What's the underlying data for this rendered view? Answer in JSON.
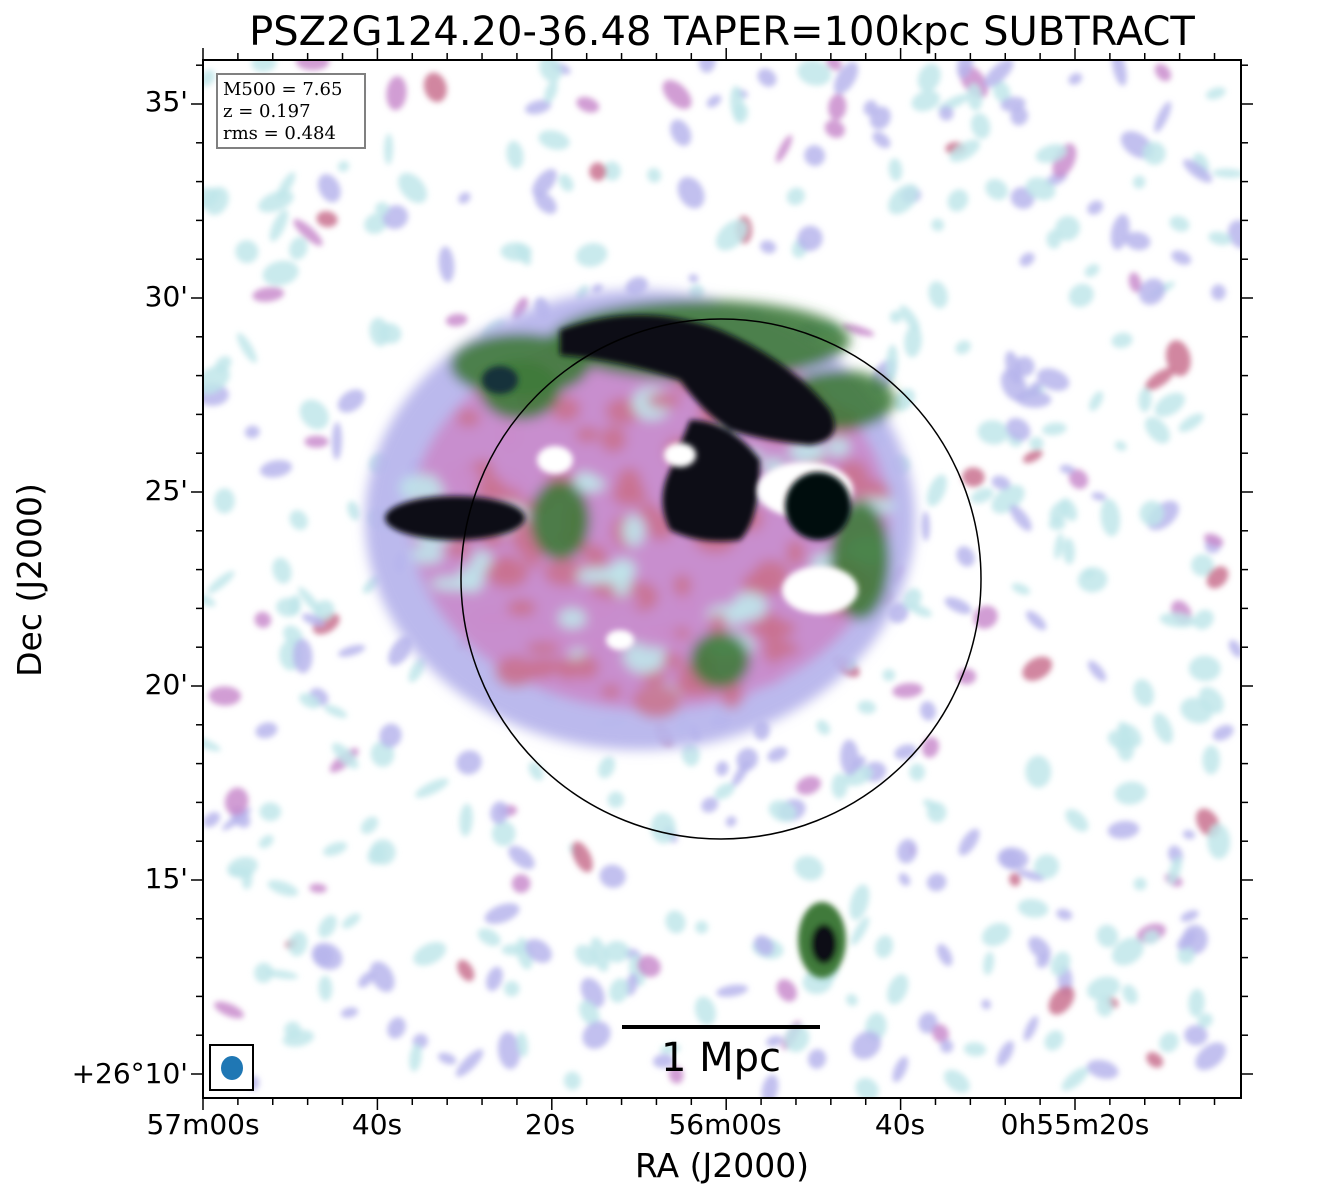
{
  "figure": {
    "title": "PSZ2G124.20-36.48 TAPER=100kpc SUBTRACT",
    "xlabel": "RA (J2000)",
    "ylabel": "Dec (J2000)",
    "info_box": {
      "lines": [
        "M500 = 7.65",
        "z = 0.197",
        "rms = 0.484"
      ]
    },
    "scale_bar": {
      "label": "1 Mpc"
    },
    "x_ticks": [
      "57m00s",
      "40s",
      "20s",
      "56m00s",
      "40s",
      "0h55m20s"
    ],
    "y_ticks": [
      "35'",
      "30'",
      "25'",
      "20'",
      "15'",
      "+26°10'"
    ],
    "colormap": [
      "#ffffff",
      "#bfe6ea",
      "#b7b5ec",
      "#c98ccc",
      "#c9718f",
      "#3f7a3a",
      "#0a0f14"
    ],
    "beam_color": "#1f77b4"
  }
}
